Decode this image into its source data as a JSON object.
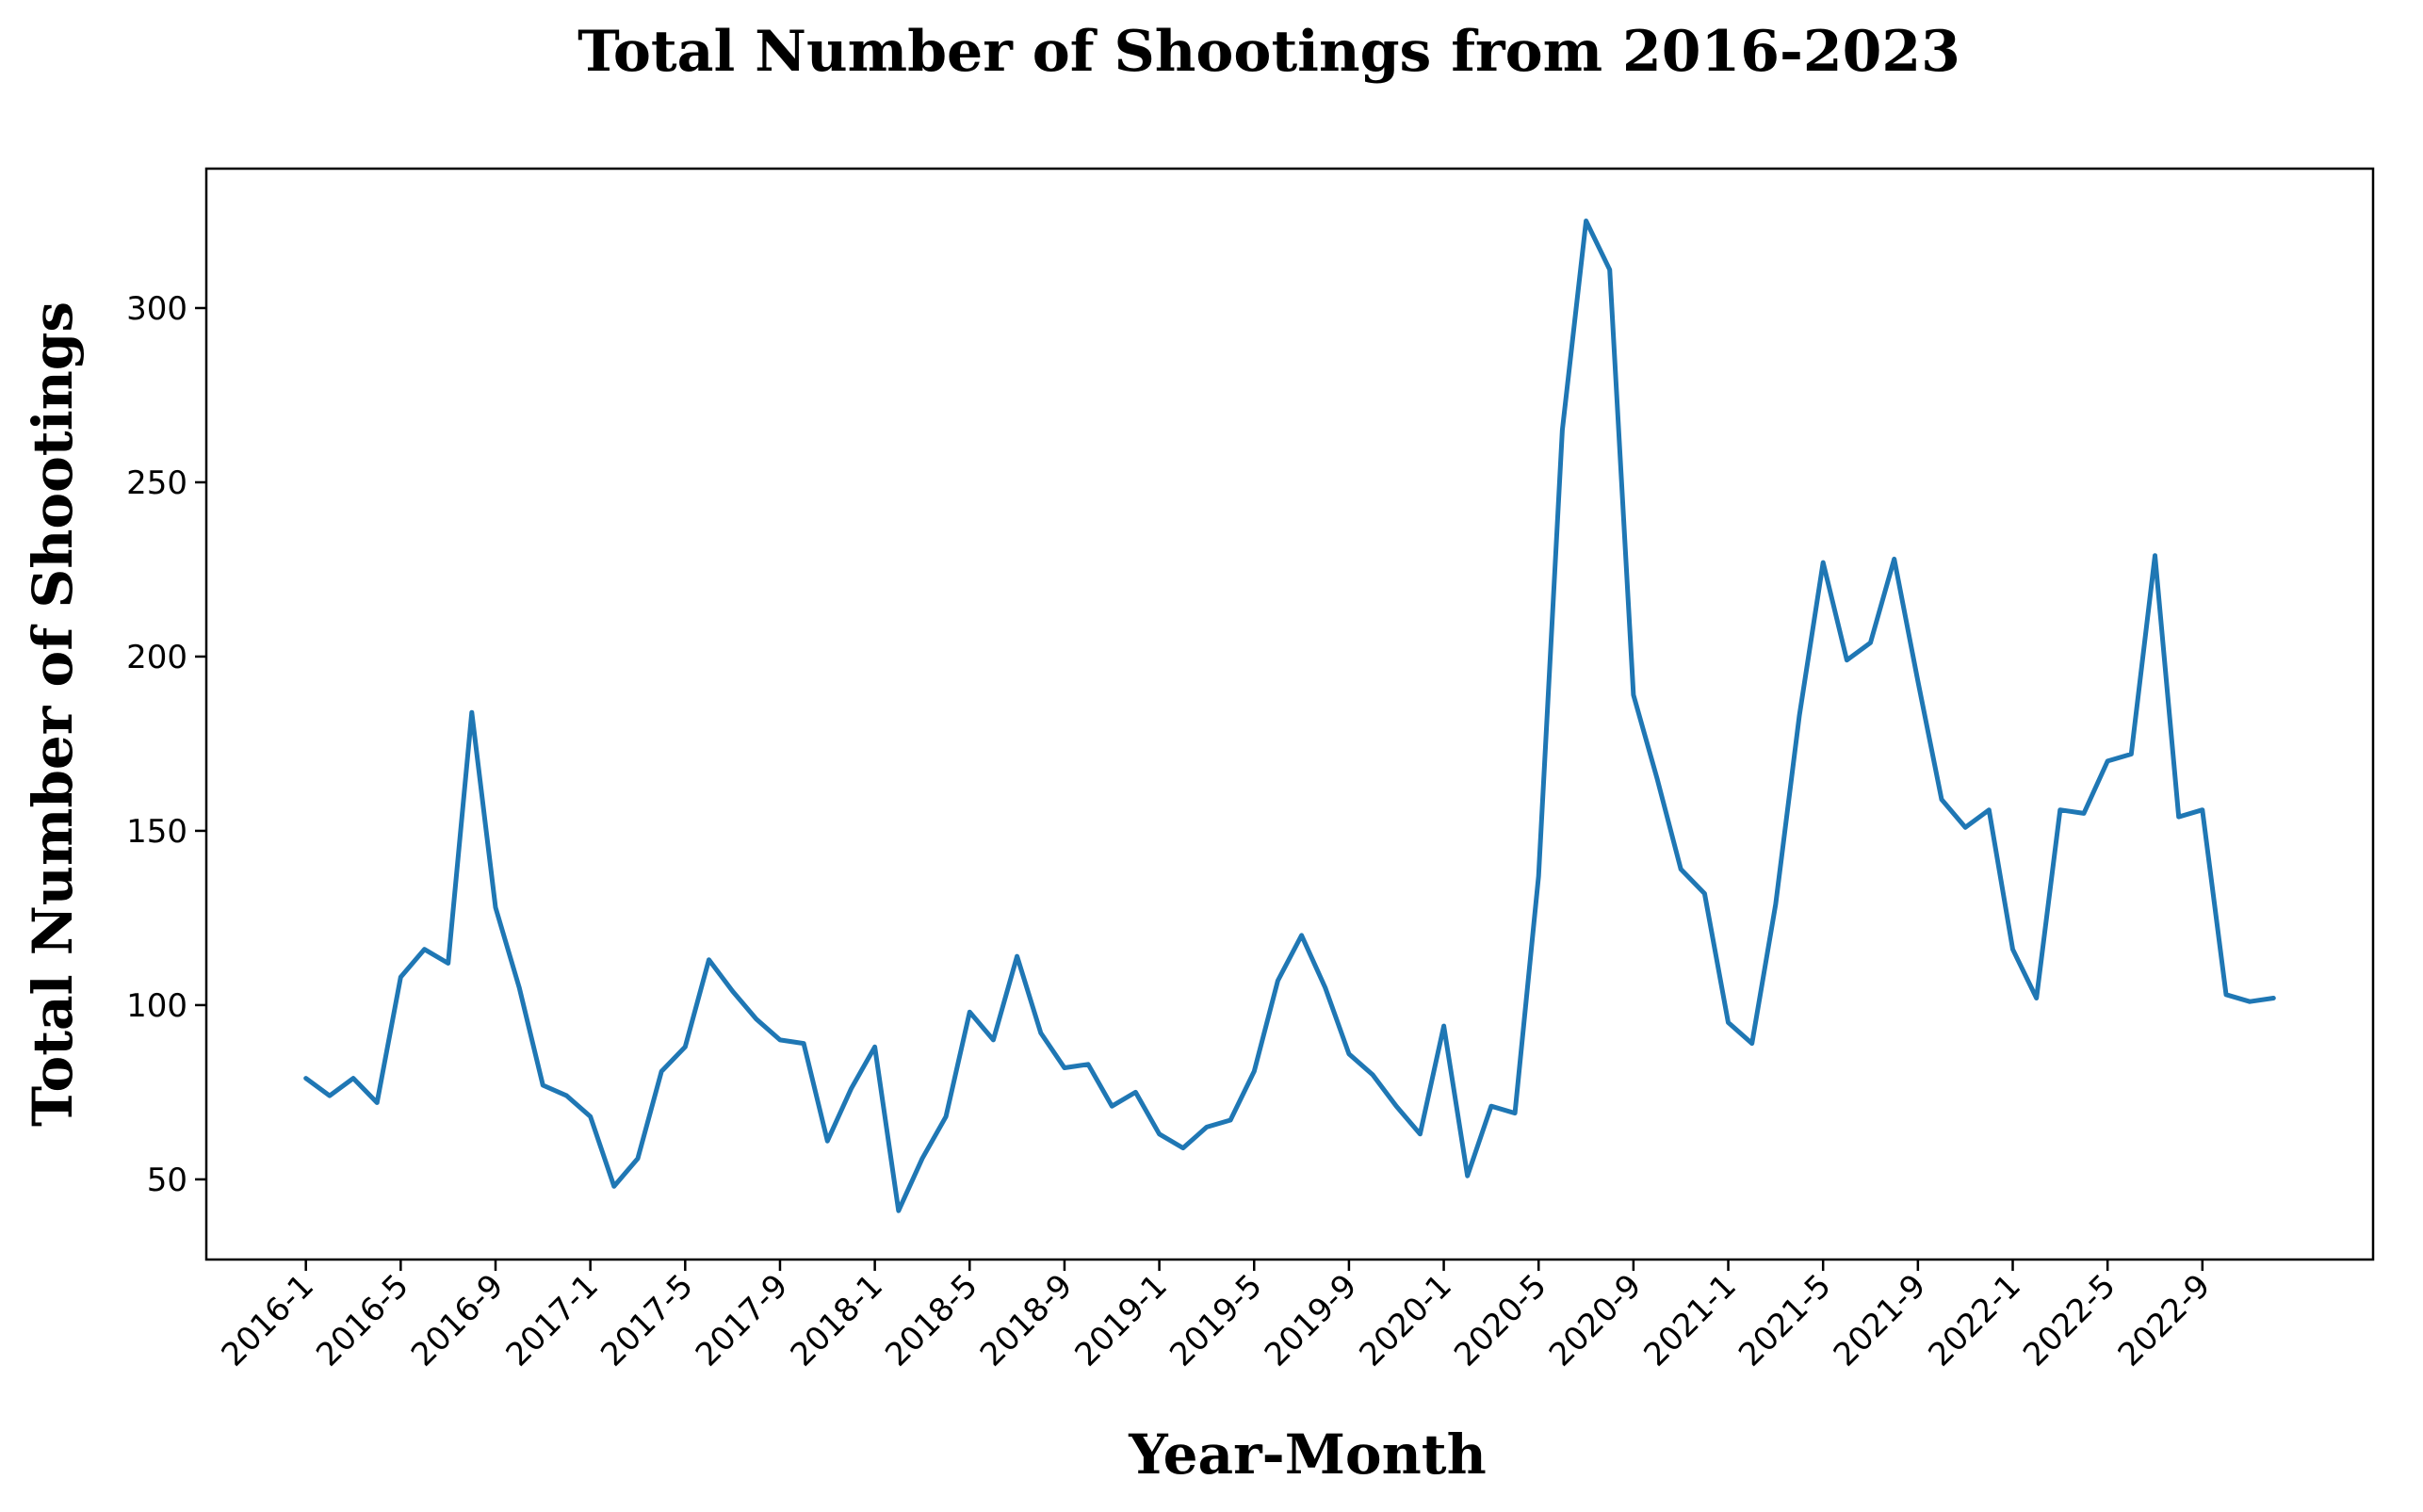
{
  "chart_data": {
    "type": "line",
    "title": "Total Number of Shootings from 2016-2023",
    "xlabel": "Year-Month",
    "ylabel": "Total Number of Shootings",
    "x_tick_labels": [
      "2016-1",
      "2016-5",
      "2016-9",
      "2017-1",
      "2017-5",
      "2017-9",
      "2018-1",
      "2018-5",
      "2018-9",
      "2019-1",
      "2019-5",
      "2019-9",
      "2020-1",
      "2020-5",
      "2020-9",
      "2021-1",
      "2021-5",
      "2021-9",
      "2022-1",
      "2022-5",
      "2022-9"
    ],
    "x_tick_step_months": 4,
    "y_ticks": [
      50,
      100,
      150,
      200,
      250,
      300
    ],
    "ylim": [
      27,
      340
    ],
    "xlim_months": [
      -4.2,
      87.2
    ],
    "grid": false,
    "line_color": "#1f77b4",
    "series": [
      {
        "values": [
          79,
          74,
          79,
          72,
          108,
          116,
          112,
          184,
          128,
          105,
          77,
          74,
          68,
          48,
          56,
          81,
          88,
          113,
          104,
          96,
          90,
          89,
          61,
          76,
          88,
          41,
          56,
          68,
          98,
          90,
          114,
          92,
          82,
          83,
          71,
          75,
          63,
          59,
          65,
          67,
          81,
          107,
          120,
          105,
          86,
          80,
          71,
          63,
          94,
          51,
          71,
          69,
          137,
          265,
          325,
          311,
          189,
          165,
          139,
          132,
          95,
          89,
          129,
          183,
          227,
          199,
          204,
          228,
          193,
          159,
          151,
          156,
          116,
          102,
          156,
          155,
          170,
          172,
          229,
          154,
          156,
          103,
          101,
          102
        ]
      }
    ]
  }
}
